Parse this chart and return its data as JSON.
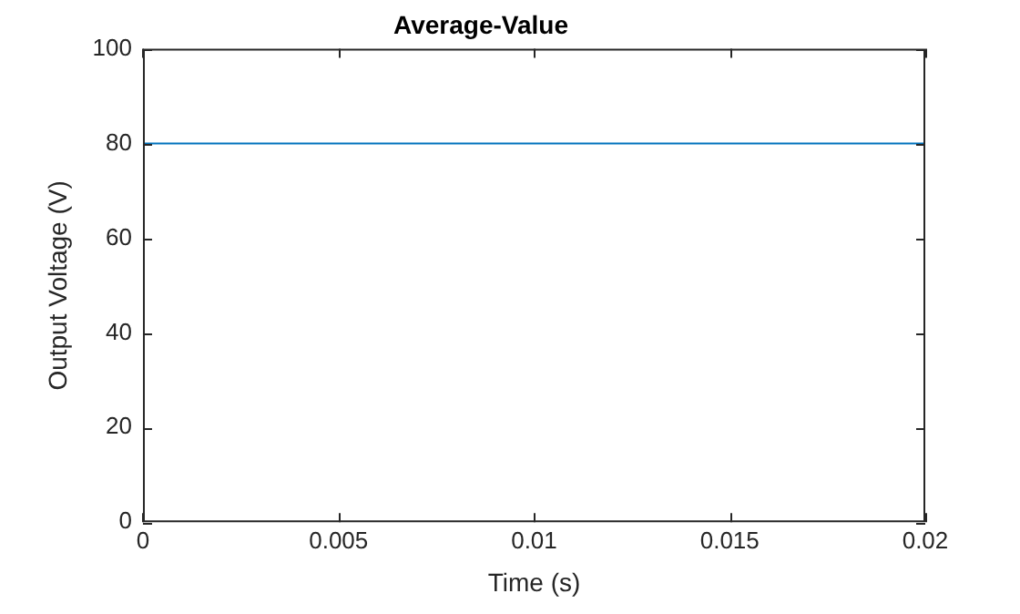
{
  "chart_data": {
    "type": "line",
    "title": "Average-Value",
    "xlabel": "Time (s)",
    "ylabel": "Output Voltage (V)",
    "x": [
      0,
      0.02
    ],
    "series": [
      {
        "color": "#0072bd",
        "values": [
          80,
          80
        ]
      }
    ],
    "xlim": [
      0,
      0.02
    ],
    "xticks": [
      0,
      0.005,
      0.01,
      0.015,
      0.02
    ],
    "ylim": [
      0,
      100
    ],
    "yticks": [
      0,
      20,
      40,
      60,
      80,
      100
    ]
  }
}
